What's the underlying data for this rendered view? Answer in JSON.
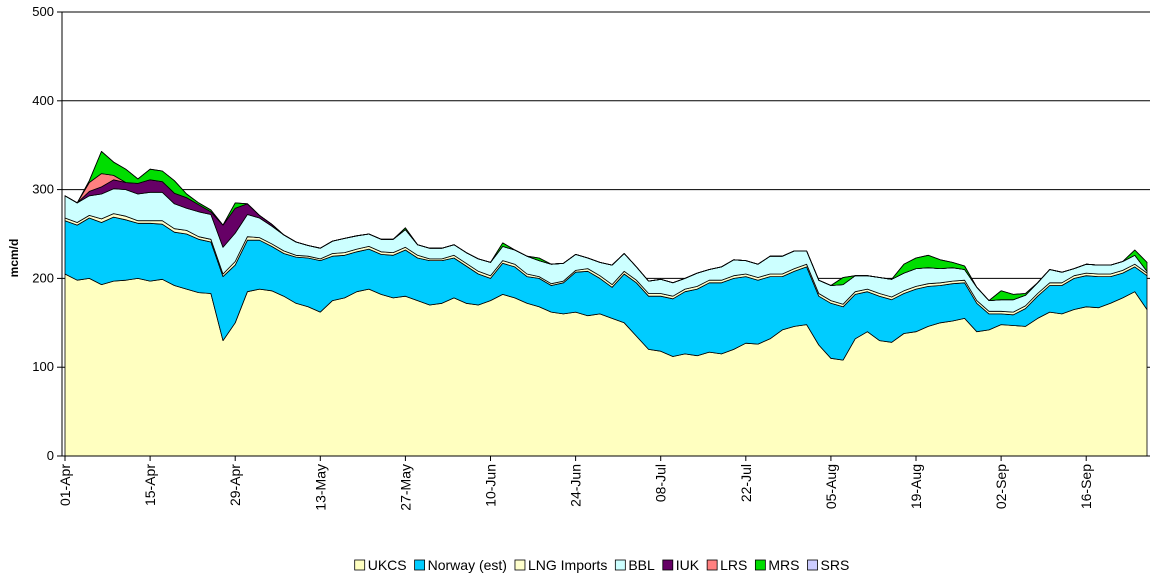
{
  "chart_data": {
    "type": "stacked-area",
    "y_label": "mcm/d",
    "categories": [
      "01-Apr",
      null,
      null,
      null,
      null,
      null,
      null,
      "15-Apr",
      null,
      null,
      null,
      null,
      null,
      null,
      "29-Apr",
      null,
      null,
      null,
      null,
      null,
      null,
      "13-May",
      null,
      null,
      null,
      null,
      null,
      null,
      "27-May",
      null,
      null,
      null,
      null,
      null,
      null,
      "10-Jun",
      null,
      null,
      null,
      null,
      null,
      null,
      "24-Jun",
      null,
      null,
      null,
      null,
      null,
      null,
      "08-Jul",
      null,
      null,
      null,
      null,
      null,
      null,
      "22-Jul",
      null,
      null,
      null,
      null,
      null,
      null,
      "05-Aug",
      null,
      null,
      null,
      null,
      null,
      null,
      "19-Aug",
      null,
      null,
      null,
      null,
      null,
      null,
      "02-Sep",
      null,
      null,
      null,
      null,
      null,
      null,
      "16-Sep",
      null,
      null,
      null,
      null,
      null
    ],
    "series": [
      {
        "name": "UKCS",
        "color": "#ffffc0",
        "values": [
          205,
          198,
          200,
          193,
          197,
          198,
          200,
          197,
          199,
          192,
          188,
          184,
          183,
          130,
          150,
          185,
          188,
          186,
          180,
          172,
          168,
          162,
          175,
          178,
          185,
          188,
          182,
          178,
          180,
          175,
          170,
          172,
          178,
          172,
          170,
          175,
          182,
          178,
          172,
          168,
          162,
          160,
          162,
          158,
          160,
          155,
          150,
          135,
          120,
          118,
          112,
          115,
          113,
          117,
          115,
          120,
          127,
          126,
          132,
          142,
          146,
          148,
          125,
          110,
          108,
          132,
          140,
          130,
          128,
          138,
          140,
          146,
          150,
          152,
          155,
          140,
          142,
          148,
          147,
          146,
          155,
          162,
          160,
          165,
          168,
          167,
          172,
          178,
          185,
          165
        ]
      },
      {
        "name": "Norway (est)",
        "color": "#00ccff",
        "values": [
          60,
          62,
          68,
          70,
          72,
          68,
          62,
          65,
          62,
          60,
          62,
          60,
          58,
          72,
          65,
          58,
          55,
          50,
          48,
          52,
          55,
          58,
          50,
          48,
          45,
          45,
          45,
          48,
          52,
          48,
          50,
          48,
          45,
          42,
          35,
          25,
          35,
          35,
          30,
          32,
          30,
          35,
          45,
          50,
          40,
          35,
          55,
          60,
          60,
          62,
          65,
          70,
          75,
          78,
          80,
          80,
          75,
          72,
          70,
          60,
          62,
          65,
          55,
          62,
          60,
          50,
          45,
          50,
          48,
          45,
          48,
          45,
          42,
          42,
          40,
          32,
          18,
          12,
          12,
          20,
          25,
          30,
          32,
          35,
          35,
          35,
          30,
          28,
          28,
          38
        ]
      },
      {
        "name": "LNG Imports",
        "color": "#ffffcc",
        "values": [
          3,
          3,
          3,
          4,
          4,
          4,
          3,
          3,
          4,
          4,
          4,
          3,
          3,
          3,
          4,
          4,
          3,
          3,
          3,
          2,
          2,
          2,
          3,
          3,
          3,
          3,
          3,
          3,
          3,
          3,
          2,
          2,
          3,
          3,
          3,
          3,
          3,
          3,
          3,
          2,
          2,
          2,
          2,
          3,
          3,
          3,
          3,
          3,
          3,
          3,
          3,
          3,
          3,
          3,
          3,
          3,
          3,
          3,
          3,
          3,
          3,
          3,
          3,
          3,
          3,
          3,
          3,
          3,
          3,
          3,
          3,
          3,
          3,
          3,
          3,
          3,
          3,
          3,
          3,
          3,
          3,
          3,
          3,
          3,
          3,
          3,
          3,
          3,
          3,
          3
        ]
      },
      {
        "name": "BBL",
        "color": "#ccffff",
        "values": [
          25,
          22,
          22,
          28,
          28,
          30,
          30,
          32,
          32,
          28,
          25,
          28,
          28,
          30,
          32,
          25,
          22,
          20,
          18,
          15,
          12,
          12,
          14,
          16,
          15,
          14,
          14,
          15,
          20,
          12,
          12,
          12,
          12,
          12,
          14,
          15,
          16,
          16,
          20,
          18,
          22,
          20,
          18,
          12,
          15,
          22,
          20,
          15,
          14,
          16,
          15,
          12,
          15,
          12,
          15,
          18,
          15,
          15,
          20,
          20,
          20,
          15,
          15,
          17,
          22,
          18,
          15,
          18,
          20,
          20,
          20,
          18,
          16,
          15,
          12,
          15,
          12,
          13,
          14,
          12,
          12,
          15,
          12,
          8,
          10,
          10,
          10,
          10,
          10,
          2
        ]
      },
      {
        "name": "IUK",
        "color": "#660066",
        "values": [
          0,
          0,
          5,
          8,
          10,
          8,
          12,
          14,
          12,
          12,
          12,
          8,
          3,
          25,
          28,
          12,
          3,
          2,
          0,
          0,
          0,
          0,
          0,
          0,
          0,
          0,
          0,
          0,
          0,
          0,
          0,
          0,
          0,
          0,
          0,
          0,
          0,
          0,
          0,
          0,
          0,
          0,
          0,
          0,
          0,
          0,
          0,
          0,
          0,
          0,
          0,
          0,
          0,
          0,
          0,
          0,
          0,
          0,
          0,
          0,
          0,
          0,
          0,
          0,
          0,
          0,
          0,
          0,
          0,
          0,
          0,
          0,
          0,
          0,
          0,
          0,
          0,
          0,
          0,
          0,
          0,
          0,
          0,
          0,
          0,
          0,
          0,
          0,
          0,
          0
        ]
      },
      {
        "name": "LRS",
        "color": "#ff8080",
        "values": [
          0,
          0,
          10,
          15,
          5,
          0,
          0,
          0,
          0,
          0,
          0,
          0,
          0,
          0,
          0,
          0,
          0,
          0,
          0,
          0,
          0,
          0,
          0,
          0,
          0,
          0,
          0,
          0,
          0,
          0,
          0,
          0,
          0,
          0,
          0,
          0,
          0,
          0,
          0,
          0,
          0,
          0,
          0,
          0,
          0,
          0,
          0,
          0,
          0,
          0,
          0,
          0,
          0,
          0,
          0,
          0,
          0,
          0,
          0,
          0,
          0,
          0,
          0,
          0,
          0,
          0,
          0,
          0,
          0,
          0,
          0,
          0,
          0,
          0,
          0,
          0,
          0,
          0,
          0,
          0,
          0,
          0,
          0,
          0,
          0,
          0,
          0,
          0,
          0,
          0
        ]
      },
      {
        "name": "MRS",
        "color": "#00dd00",
        "values": [
          0,
          0,
          2,
          25,
          15,
          15,
          5,
          12,
          12,
          14,
          4,
          2,
          2,
          0,
          6,
          0,
          0,
          0,
          0,
          0,
          0,
          0,
          0,
          0,
          0,
          0,
          0,
          0,
          2,
          0,
          0,
          0,
          0,
          0,
          0,
          0,
          4,
          0,
          0,
          3,
          0,
          0,
          0,
          0,
          0,
          0,
          0,
          0,
          0,
          0,
          0,
          0,
          0,
          0,
          0,
          0,
          0,
          0,
          0,
          0,
          0,
          0,
          0,
          0,
          8,
          0,
          0,
          0,
          0,
          10,
          12,
          14,
          10,
          6,
          4,
          0,
          0,
          10,
          6,
          2,
          0,
          0,
          0,
          0,
          0,
          0,
          0,
          0,
          6,
          10
        ]
      },
      {
        "name": "SRS",
        "color": "#ccccff",
        "values": [
          0,
          0,
          0,
          0,
          0,
          0,
          0,
          0,
          0,
          0,
          0,
          0,
          0,
          0,
          0,
          0,
          0,
          0,
          0,
          0,
          0,
          0,
          0,
          0,
          0,
          0,
          0,
          0,
          0,
          0,
          0,
          0,
          0,
          0,
          0,
          0,
          0,
          0,
          0,
          0,
          0,
          0,
          0,
          0,
          0,
          0,
          0,
          0,
          0,
          0,
          0,
          0,
          0,
          0,
          0,
          0,
          0,
          0,
          0,
          0,
          0,
          0,
          0,
          0,
          0,
          0,
          0,
          0,
          0,
          0,
          0,
          0,
          0,
          0,
          0,
          0,
          0,
          0,
          0,
          0,
          0,
          0,
          0,
          0,
          0,
          0,
          0,
          0,
          0,
          0
        ]
      }
    ],
    "ylim": [
      0,
      500
    ],
    "yticks": [
      0,
      100,
      200,
      300,
      400,
      500
    ],
    "grid": true,
    "legend": "bottom"
  }
}
